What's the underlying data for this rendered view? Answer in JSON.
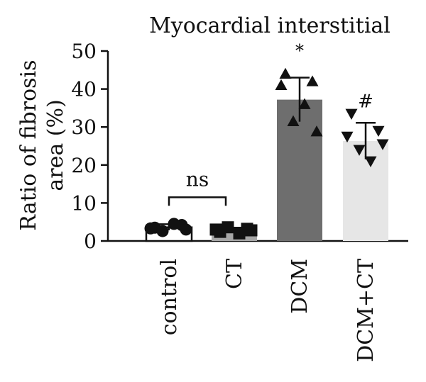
{
  "chart_data": {
    "type": "bar",
    "title": "Myocardial interstitial",
    "ylabel": "Ratio of fibrosis area (%)",
    "ylabel_lines": [
      "Ratio of fibrosis",
      "area (%)"
    ],
    "xlabel": "",
    "ylim": [
      0,
      50
    ],
    "yticks": [
      0,
      10,
      20,
      30,
      40,
      50
    ],
    "categories": [
      "control",
      "CT",
      "DCM",
      "DCM+CT"
    ],
    "values": [
      3.6,
      2.9,
      37.2,
      26.3
    ],
    "error": [
      0.8,
      0.6,
      5.8,
      4.8
    ],
    "bar_colors": [
      "#ffffff",
      "#a6a6a6",
      "#6e6e6e",
      "#e6e6e6"
    ],
    "bar_edge": "#111111",
    "markers": [
      "circle",
      "square",
      "triangle-up",
      "triangle-down"
    ],
    "points": [
      [
        3.5,
        4.2,
        2.6,
        4.5,
        3.0,
        3.3
      ],
      [
        2.4,
        3.2,
        3.6,
        2.0,
        2.8,
        3.0
      ],
      [
        44.0,
        42.0,
        31.5,
        36.0,
        28.8,
        41.0
      ],
      [
        33.5,
        29.0,
        24.0,
        21.0,
        25.5,
        27.5
      ]
    ],
    "annotations": [
      {
        "text": "*",
        "category": "DCM"
      },
      {
        "text": "#",
        "category": "DCM+CT"
      }
    ],
    "bracket": {
      "text": "ns",
      "from": "control",
      "to": "CT"
    },
    "grid": false
  }
}
